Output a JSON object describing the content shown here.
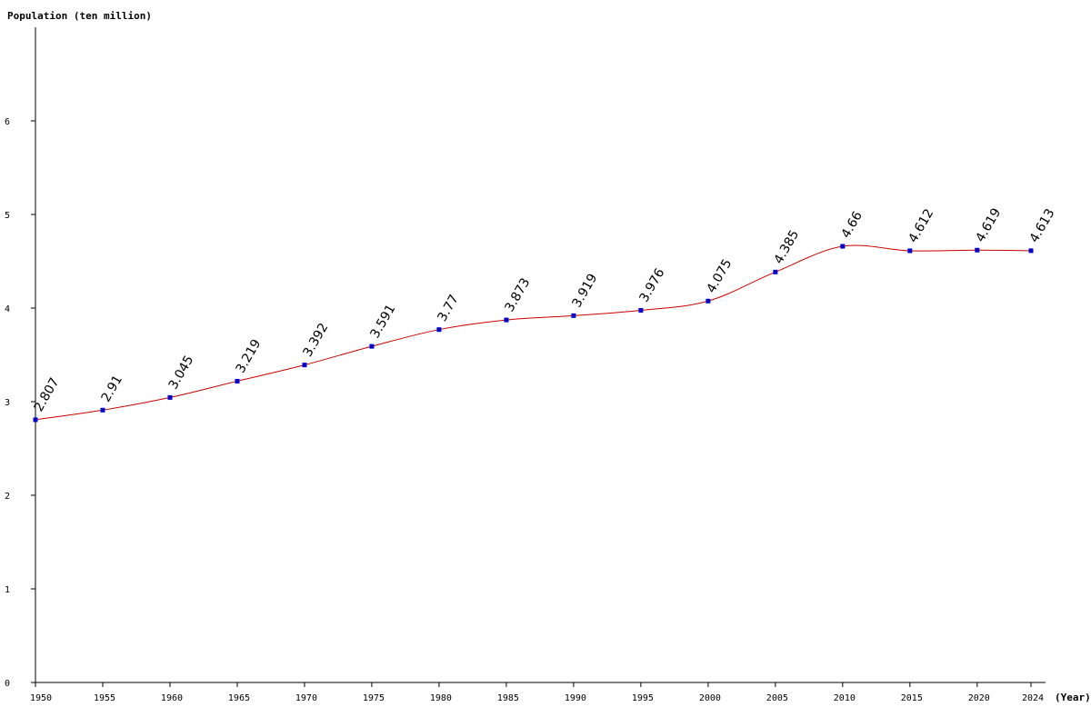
{
  "chart_data": {
    "type": "line",
    "ylabel": "Population (ten million)",
    "xlabel": "(Year)",
    "x": [
      1950,
      1955,
      1960,
      1965,
      1970,
      1975,
      1980,
      1985,
      1990,
      1995,
      2000,
      2005,
      2010,
      2015,
      2020,
      2024
    ],
    "series": [
      {
        "values": [
          2.807,
          2.91,
          3.045,
          3.219,
          3.392,
          3.591,
          3.77,
          3.873,
          3.919,
          3.976,
          4.075,
          4.385,
          4.66,
          4.612,
          4.619,
          4.613
        ],
        "labels": [
          "2.807",
          "2.91",
          "3.045",
          "3.219",
          "3.392",
          "3.591",
          "3.77",
          "3.873",
          "3.919",
          "3.976",
          "4.075",
          "4.385",
          "4.66",
          "4.612",
          "4.619",
          "4.613"
        ],
        "color": "#cc0000",
        "marker_color": "#0000cc"
      }
    ],
    "x_tick_labels": [
      "1950",
      "1955",
      "1960",
      "1965",
      "1970",
      "1975",
      "1980",
      "1985",
      "1990",
      "1995",
      "2000",
      "2005",
      "2010",
      "2015",
      "2020",
      "2024"
    ],
    "y_ticks": [
      0,
      1,
      2,
      3,
      4,
      5,
      6
    ],
    "y_tick_labels": [
      "0",
      "1",
      "2",
      "3",
      "4",
      "5",
      "6"
    ],
    "xlim": [
      1950,
      2024
    ],
    "ylim": [
      0,
      7
    ],
    "grid": false,
    "legend": false
  }
}
